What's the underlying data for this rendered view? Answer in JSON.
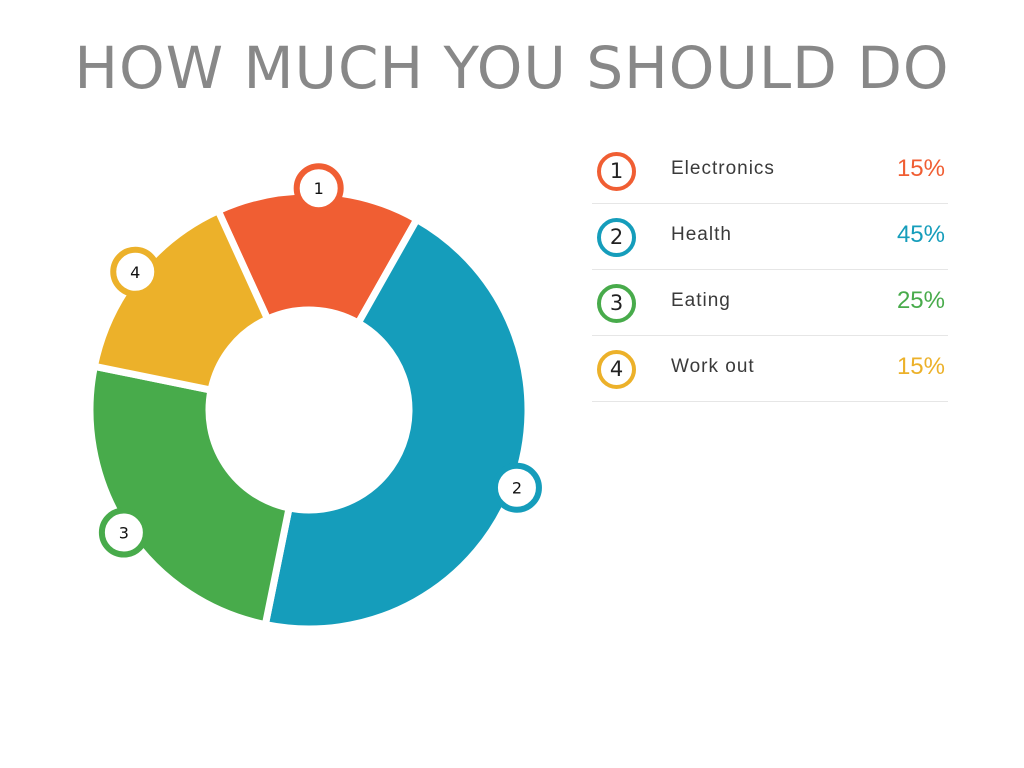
{
  "title": "HOW MUCH YOU SHOULD DO",
  "chart_data": {
    "type": "pie",
    "title": "HOW MUCH YOU SHOULD DO",
    "legend": "right",
    "slices": [
      {
        "number": "1",
        "label": "Electronics",
        "value": 15,
        "value_label": "15%",
        "color": "#f05e33"
      },
      {
        "number": "2",
        "label": "Health",
        "value": 45,
        "value_label": "45%",
        "color": "#159dbb"
      },
      {
        "number": "3",
        "label": "Eating",
        "value": 25,
        "value_label": "25%",
        "color": "#48ab4b"
      },
      {
        "number": "4",
        "label": "Work out",
        "value": 15,
        "value_label": "15%",
        "color": "#ecb12a"
      }
    ]
  }
}
